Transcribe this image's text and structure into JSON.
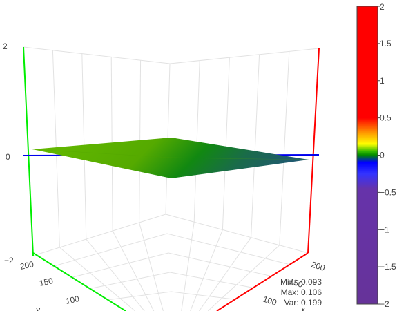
{
  "chart_data": {
    "type": "surface",
    "z_axis": {
      "range": [
        -2,
        2
      ],
      "ticks": [
        "2",
        "0",
        "−2"
      ]
    },
    "y_axis": {
      "label": "y",
      "ticks": [
        "200",
        "150",
        "100"
      ]
    },
    "x_axis": {
      "label": "x",
      "ticks": [
        "200",
        "150",
        "100"
      ]
    },
    "surface": {
      "x": [
        100,
        200
      ],
      "y": [
        100,
        200
      ],
      "z_min": -0.093,
      "z_max": 0.106
    },
    "colorbar": {
      "min": -2,
      "max": 2,
      "ticks": [
        "2",
        "1.5",
        "1",
        "0.5",
        "0",
        "−0.5",
        "−1",
        "−1.5",
        "−2"
      ],
      "stops": [
        {
          "value": 2,
          "color": "#ff0000"
        },
        {
          "value": 0.5,
          "color": "#ff0000"
        },
        {
          "value": 0.3,
          "color": "#ff9900"
        },
        {
          "value": 0.15,
          "color": "#ffff00"
        },
        {
          "value": 0.05,
          "color": "#33bb00"
        },
        {
          "value": 0,
          "color": "#008800"
        },
        {
          "value": -0.1,
          "color": "#0000ff"
        },
        {
          "value": -0.25,
          "color": "#3333ff"
        },
        {
          "value": -0.45,
          "color": "#6633aa"
        },
        {
          "value": -2,
          "color": "#663399"
        }
      ]
    },
    "stats": {
      "min": "Min: -0.093",
      "max": "Max: 0.106",
      "var": "Var: 0.199"
    },
    "axis_colors": {
      "x": "#ff0000",
      "y": "#00ee00",
      "z": "#0000ee"
    }
  }
}
